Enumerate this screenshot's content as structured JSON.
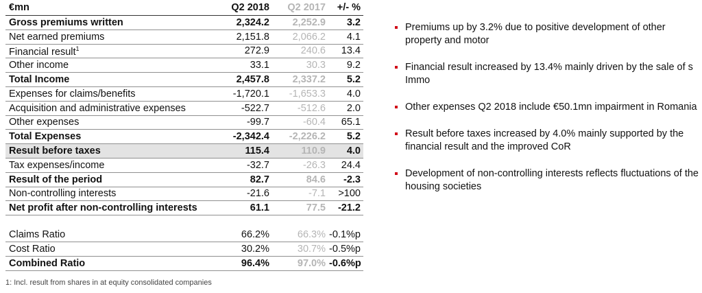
{
  "table": {
    "header": {
      "label": "€mn",
      "q2018": "Q2 2018",
      "q2017": "Q2 2017",
      "change": "+/- %"
    },
    "rows": [
      {
        "label": "Gross premiums written",
        "q2018": "2,324.2",
        "q2017": "2,252.9",
        "change": "3.2",
        "bold": true,
        "shaded": false
      },
      {
        "label": "Net earned premiums",
        "q2018": "2,151.8",
        "q2017": "2,066.2",
        "change": "4.1",
        "bold": false,
        "shaded": false
      },
      {
        "label": "Financial result",
        "sup": "1",
        "q2018": "272.9",
        "q2017": "240.6",
        "change": "13.4",
        "bold": false,
        "shaded": false
      },
      {
        "label": "Other income",
        "q2018": "33.1",
        "q2017": "30.3",
        "change": "9.2",
        "bold": false,
        "shaded": false
      },
      {
        "label": "Total Income",
        "q2018": "2,457.8",
        "q2017": "2,337.2",
        "change": "5.2",
        "bold": true,
        "shaded": false
      },
      {
        "label": "Expenses for claims/benefits",
        "q2018": "-1,720.1",
        "q2017": "-1,653.3",
        "change": "4.0",
        "bold": false,
        "shaded": false
      },
      {
        "label": "Acquisition and administrative expenses",
        "q2018": "-522.7",
        "q2017": "-512.6",
        "change": "2.0",
        "bold": false,
        "shaded": false
      },
      {
        "label": "Other expenses",
        "q2018": "-99.7",
        "q2017": "-60.4",
        "change": "65.1",
        "bold": false,
        "shaded": false
      },
      {
        "label": "Total Expenses",
        "q2018": "-2,342.4",
        "q2017": "-2,226.2",
        "change": "5.2",
        "bold": true,
        "shaded": false
      },
      {
        "label": "Result before taxes",
        "q2018": "115.4",
        "q2017": "110.9",
        "change": "4.0",
        "bold": true,
        "shaded": true
      },
      {
        "label": "Tax expenses/income",
        "q2018": "-32.7",
        "q2017": "-26.3",
        "change": "24.4",
        "bold": false,
        "shaded": false
      },
      {
        "label": "Result of the period",
        "q2018": "82.7",
        "q2017": "84.6",
        "change": "-2.3",
        "bold": true,
        "shaded": false
      },
      {
        "label": "Non-controlling interests",
        "q2018": "-21.6",
        "q2017": "-7.1",
        "change": ">100",
        "bold": false,
        "shaded": false
      },
      {
        "label": "Net profit after non-controlling interests",
        "q2018": "61.1",
        "q2017": "77.5",
        "change": "-21.2",
        "bold": true,
        "shaded": false
      }
    ],
    "ratios": [
      {
        "label": "Claims Ratio",
        "q2018": "66.2%",
        "q2017": "66.3%",
        "change": "-0.1%p",
        "bold": false
      },
      {
        "label": "Cost Ratio",
        "q2018": "30.2%",
        "q2017": "30.7%",
        "change": "-0.5%p",
        "bold": false
      },
      {
        "label": "Combined Ratio",
        "q2018": "96.4%",
        "q2017": "97.0%",
        "change": "-0.6%p",
        "bold": true
      }
    ]
  },
  "footnote": "1: Incl. result from shares in at equity consolidated companies",
  "bullets": [
    "Premiums up by 3.2% due to positive development of other property and motor",
    "Financial result increased by 13.4% mainly driven by the sale of s Immo",
    "Other expenses Q2 2018 include €50.1mn impairment in Romania",
    "Result before taxes increased by 4.0% mainly supported by the financial result and the improved CoR",
    "Development of non-controlling interests reflects fluctuations of the housing societies"
  ],
  "colors": {
    "bullet": "#d10a18",
    "prior_year": "#b5b5b5",
    "shade": "#e3e3e3"
  }
}
